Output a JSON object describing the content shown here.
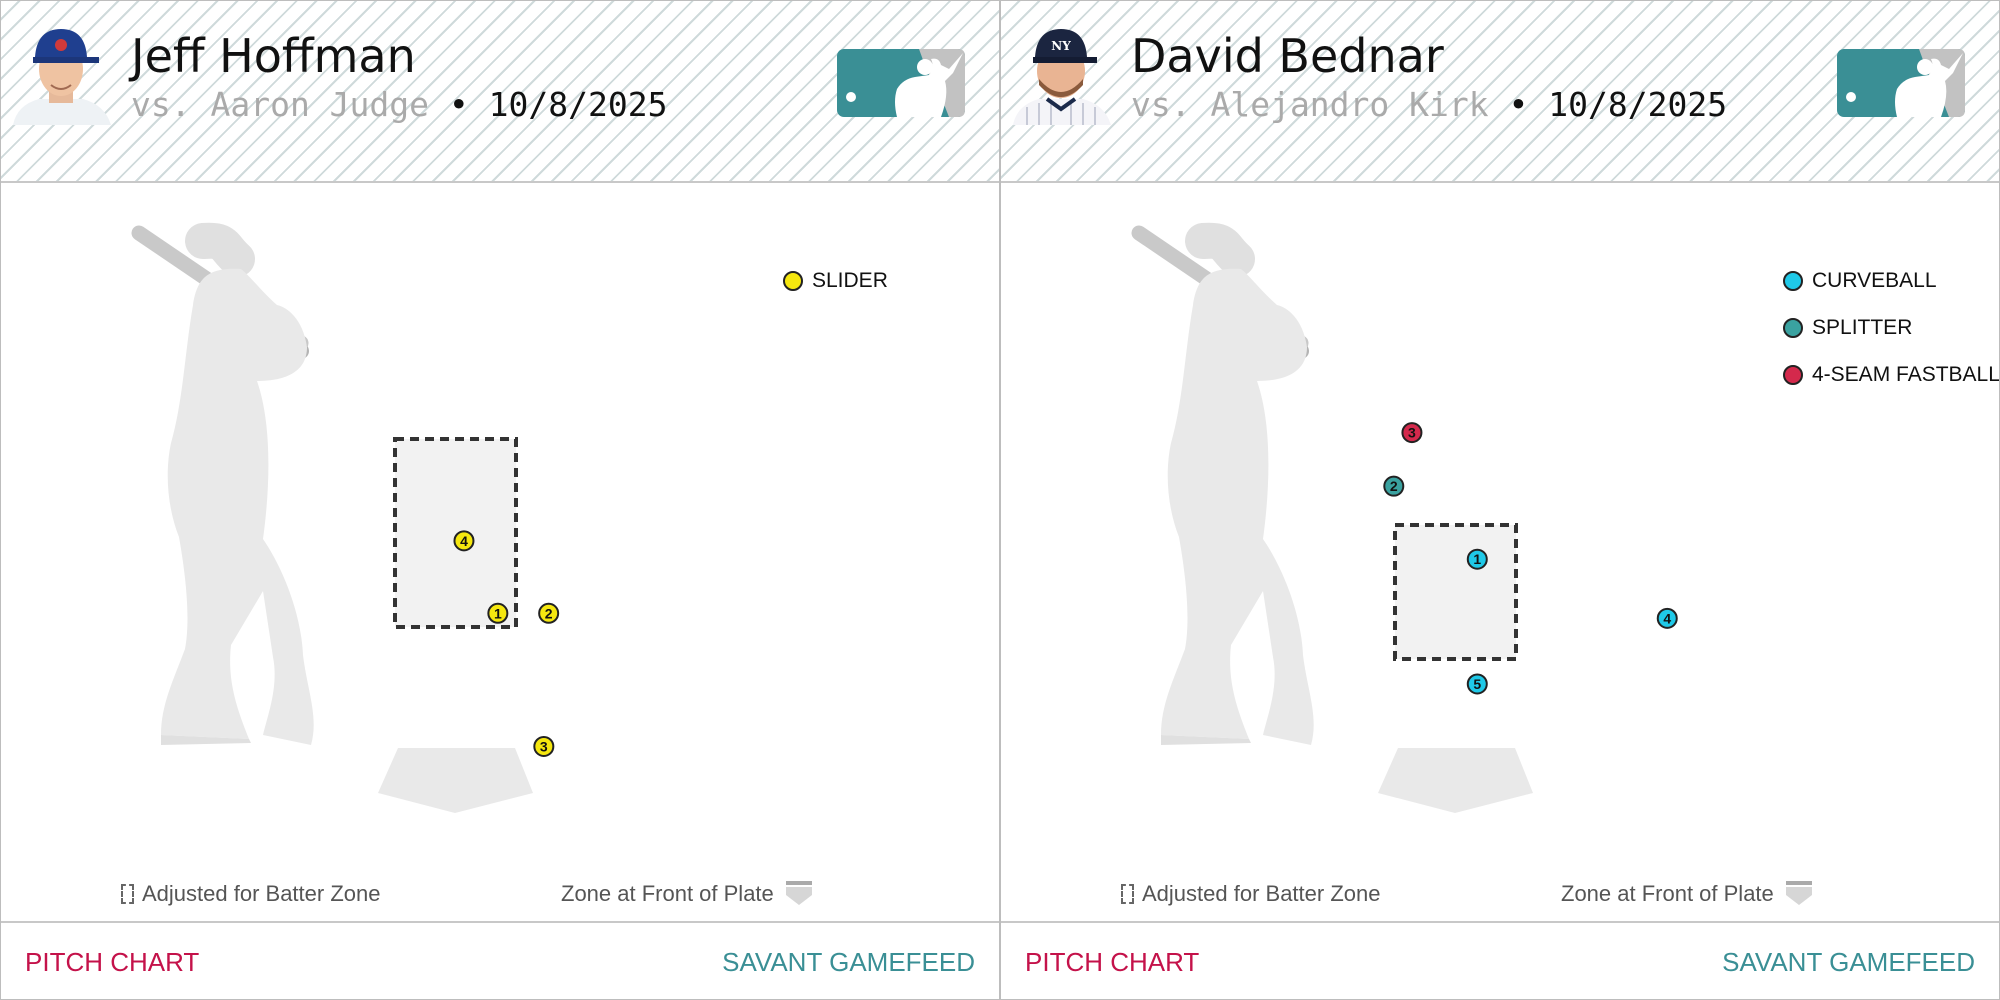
{
  "colors": {
    "slider": "#f5e70f",
    "curveball": "#1fc9e8",
    "splitter": "#3aa2a0",
    "fourseam": "#d4294c",
    "link_red": "#c4124a",
    "link_teal": "#3a8f95",
    "logo_teal": "#3a8f95",
    "logo_gray": "#c2c2c2"
  },
  "icons": {
    "batter": "batter-silhouette-icon",
    "logo": "mlb-logo-icon",
    "plate": "home-plate-icon",
    "adjusted": "dashed-box-icon",
    "front": "plate-front-icon"
  },
  "panels": [
    {
      "pitcher": "Jeff Hoffman",
      "batter_label": "vs. Aaron Judge",
      "separator": "•",
      "date": "10/8/2025",
      "footer_left": "PITCH CHART",
      "footer_right": "SAVANT GAMEFEED",
      "caption_adjusted": "Adjusted for Batter Zone",
      "caption_front": "Zone at Front of Plate"
    },
    {
      "pitcher": "David Bednar",
      "batter_label": "vs. Alejandro Kirk",
      "separator": "•",
      "date": "10/8/2025",
      "footer_left": "PITCH CHART",
      "footer_right": "SAVANT GAMEFEED",
      "caption_adjusted": "Adjusted for Batter Zone",
      "caption_front": "Zone at Front of Plate"
    }
  ],
  "chart_data": [
    {
      "type": "scatter",
      "title": "",
      "x_range": [
        -1.0,
        1.0
      ],
      "y_range": [
        1.54,
        3.46
      ],
      "strike_zone": {
        "x": [
          -0.5,
          0.5
        ],
        "y": [
          1.54,
          3.46
        ]
      },
      "legend": [
        {
          "name": "SLIDER",
          "color": "#f5e70f"
        }
      ],
      "pitches": [
        {
          "label": "1",
          "type": "SLIDER",
          "x": 0.35,
          "y": 1.68
        },
        {
          "label": "2",
          "type": "SLIDER",
          "x": 0.77,
          "y": 1.68
        },
        {
          "label": "3",
          "type": "SLIDER",
          "x": 0.73,
          "y": 0.32
        },
        {
          "label": "4",
          "type": "SLIDER",
          "x": 0.07,
          "y": 2.42
        }
      ]
    },
    {
      "type": "scatter",
      "title": "",
      "x_range": [
        -1.0,
        1.0
      ],
      "y_range": [
        1.55,
        3.0
      ],
      "strike_zone": {
        "x": [
          -0.5,
          0.5
        ],
        "y": [
          1.55,
          3.0
        ]
      },
      "legend": [
        {
          "name": "CURVEBALL",
          "color": "#1fc9e8"
        },
        {
          "name": "SPLITTER",
          "color": "#3aa2a0"
        },
        {
          "name": "4-SEAM FASTBALL",
          "color": "#d4294c"
        }
      ],
      "pitches": [
        {
          "label": "1",
          "type": "CURVEBALL",
          "x": 0.18,
          "y": 2.63
        },
        {
          "label": "2",
          "type": "SPLITTER",
          "x": -0.51,
          "y": 3.42
        },
        {
          "label": "3",
          "type": "4-SEAM FASTBALL",
          "x": -0.36,
          "y": 4.0
        },
        {
          "label": "4",
          "type": "CURVEBALL",
          "x": 1.75,
          "y": 1.99
        },
        {
          "label": "5",
          "type": "CURVEBALL",
          "x": 0.18,
          "y": 1.28
        }
      ]
    }
  ]
}
